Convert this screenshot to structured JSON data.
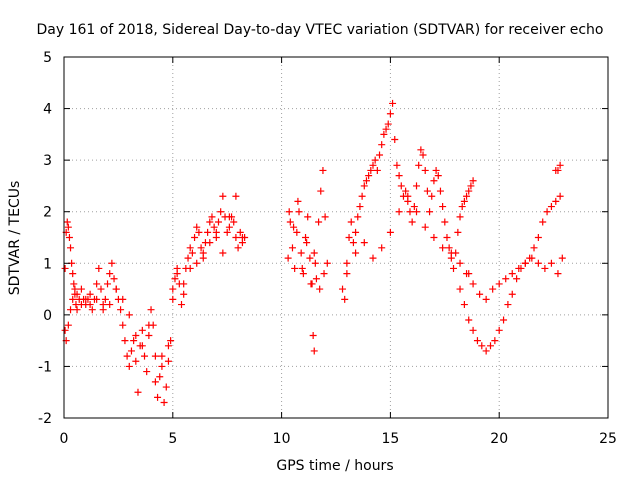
{
  "chart_data": {
    "type": "scatter",
    "title": "Day 161 of 2018, Sidereal Day-to-day VTEC variation (SDTVAR) for receiver echo",
    "xlabel": "GPS time / hours",
    "ylabel": "SDTVAR / TECUs",
    "xlim": [
      0,
      25
    ],
    "ylim": [
      -2,
      5
    ],
    "xticks": [
      "0",
      "5",
      "10",
      "15",
      "20",
      "25"
    ],
    "yticks": [
      "5",
      "4",
      "3",
      "2",
      "1",
      "0",
      "-1",
      "-2"
    ],
    "grid": true,
    "marker": "+",
    "colors": {
      "series": "#ff0000",
      "grid": "#a0a0a0",
      "axis": "#000000",
      "background": "#ffffff"
    },
    "series": [
      {
        "name": "SDTVAR",
        "x": [
          0.05,
          0.1,
          0.15,
          0.2,
          0.25,
          0.3,
          0.35,
          0.4,
          0.45,
          0.5,
          0.55,
          0.6,
          0.7,
          0.8,
          0.9,
          1.0,
          1.1,
          1.2,
          1.3,
          1.4,
          1.5,
          1.6,
          1.7,
          1.8,
          1.9,
          2.0,
          2.1,
          2.2,
          2.3,
          2.4,
          2.5,
          2.6,
          2.7,
          2.8,
          2.9,
          3.0,
          3.1,
          3.2,
          3.3,
          3.4,
          3.5,
          3.6,
          3.7,
          3.8,
          3.9,
          4.0,
          4.1,
          4.2,
          4.3,
          4.4,
          4.5,
          4.6,
          4.7,
          4.8,
          4.9,
          5.0,
          5.1,
          5.2,
          5.3,
          5.4,
          5.5,
          5.6,
          5.7,
          5.8,
          5.9,
          6.0,
          6.1,
          6.2,
          6.3,
          6.4,
          6.5,
          6.6,
          6.7,
          6.8,
          6.9,
          7.0,
          7.1,
          7.2,
          7.3,
          7.4,
          7.5,
          7.6,
          7.7,
          7.8,
          7.9,
          8.0,
          8.1,
          8.2,
          8.3,
          0.05,
          0.1,
          0.2,
          0.3,
          0.4,
          0.5,
          0.6,
          0.8,
          1.0,
          1.2,
          1.5,
          1.8,
          2.1,
          2.4,
          2.7,
          3.0,
          3.3,
          3.6,
          3.9,
          4.2,
          4.5,
          4.8,
          5.0,
          5.2,
          5.5,
          5.8,
          6.1,
          6.4,
          6.7,
          7.0,
          7.3,
          7.6,
          7.9,
          8.2,
          10.3,
          10.4,
          10.5,
          10.6,
          10.7,
          10.8,
          10.9,
          11.0,
          11.1,
          11.2,
          11.3,
          11.4,
          11.5,
          11.6,
          11.7,
          11.8,
          11.9,
          12.0,
          12.1,
          10.35,
          10.55,
          10.75,
          10.95,
          11.15,
          11.35,
          11.55,
          11.75,
          11.95,
          11.45,
          11.5,
          12.8,
          12.9,
          13.0,
          13.1,
          13.2,
          13.3,
          13.4,
          13.5,
          13.6,
          13.7,
          13.8,
          13.9,
          14.0,
          14.1,
          14.2,
          14.3,
          14.4,
          14.5,
          14.6,
          14.7,
          14.8,
          14.9,
          15.0,
          15.1,
          15.2,
          15.3,
          15.4,
          15.5,
          15.6,
          15.7,
          15.8,
          15.9,
          16.0,
          16.1,
          16.2,
          16.3,
          16.4,
          16.5,
          16.6,
          16.7,
          16.8,
          16.9,
          17.0,
          17.1,
          17.2,
          17.3,
          17.4,
          17.5,
          17.6,
          17.7,
          17.8,
          17.9,
          18.0,
          18.1,
          18.2,
          18.3,
          18.4,
          18.5,
          18.6,
          18.7,
          18.8,
          13.0,
          13.4,
          13.8,
          14.2,
          14.6,
          15.0,
          15.4,
          15.8,
          16.2,
          16.6,
          17.0,
          17.4,
          17.8,
          18.2,
          18.6,
          18.2,
          18.4,
          18.6,
          18.8,
          19.0,
          19.2,
          19.4,
          19.6,
          19.8,
          20.0,
          20.2,
          20.4,
          20.6,
          20.8,
          21.0,
          21.2,
          21.4,
          21.6,
          21.8,
          22.0,
          22.2,
          22.4,
          22.6,
          22.8,
          18.5,
          18.8,
          19.1,
          19.4,
          19.7,
          20.0,
          20.3,
          20.6,
          20.9,
          21.2,
          21.5,
          21.8,
          22.1,
          22.4,
          22.7,
          22.9,
          22.6,
          22.8,
          22.7
        ],
        "y": [
          0.9,
          1.6,
          1.8,
          1.7,
          1.5,
          1.3,
          1.0,
          0.8,
          0.6,
          0.4,
          0.2,
          0.1,
          0.3,
          0.5,
          0.3,
          0.2,
          0.3,
          0.2,
          0.1,
          0.3,
          0.6,
          0.9,
          0.5,
          0.2,
          0.3,
          0.6,
          0.8,
          1.0,
          0.7,
          0.5,
          0.3,
          0.1,
          -0.2,
          -0.5,
          -0.8,
          -1.0,
          -0.7,
          -0.5,
          -0.9,
          -1.5,
          -0.6,
          -0.3,
          -0.8,
          -1.1,
          -0.4,
          0.1,
          -0.2,
          -1.3,
          -1.6,
          -1.2,
          -0.8,
          -1.7,
          -1.4,
          -0.9,
          -0.5,
          0.3,
          0.7,
          0.9,
          0.6,
          0.2,
          0.6,
          0.9,
          1.1,
          1.3,
          1.2,
          1.5,
          1.7,
          1.6,
          1.3,
          1.1,
          1.4,
          1.6,
          1.8,
          1.9,
          1.7,
          1.5,
          1.8,
          2.0,
          2.3,
          1.9,
          1.6,
          1.7,
          1.9,
          1.8,
          1.5,
          1.3,
          1.6,
          1.4,
          1.5,
          -0.3,
          -0.5,
          -0.2,
          0.1,
          0.3,
          0.5,
          0.4,
          0.2,
          0.3,
          0.4,
          0.3,
          0.1,
          0.2,
          0.5,
          0.3,
          0.0,
          -0.4,
          -0.6,
          -0.2,
          -0.8,
          -1.0,
          -0.6,
          0.5,
          0.8,
          0.4,
          0.9,
          1.0,
          1.2,
          1.4,
          1.6,
          1.2,
          1.9,
          2.3,
          1.5,
          1.1,
          1.8,
          1.3,
          0.9,
          1.6,
          2.0,
          1.2,
          0.8,
          1.5,
          1.9,
          1.1,
          0.6,
          1.2,
          0.7,
          1.8,
          2.4,
          2.8,
          1.9,
          1.0,
          2.0,
          1.7,
          2.2,
          0.9,
          1.4,
          0.6,
          1.0,
          0.5,
          0.8,
          -0.4,
          -0.7,
          0.5,
          0.3,
          0.8,
          1.5,
          1.8,
          1.4,
          1.6,
          1.9,
          2.1,
          2.3,
          2.5,
          2.6,
          2.7,
          2.8,
          2.9,
          3.0,
          2.8,
          3.1,
          3.3,
          3.5,
          3.6,
          3.7,
          3.9,
          4.1,
          3.4,
          2.9,
          2.7,
          2.5,
          2.3,
          2.4,
          2.2,
          2.0,
          1.8,
          2.1,
          2.5,
          2.9,
          3.2,
          3.1,
          2.8,
          2.4,
          2.0,
          2.3,
          2.6,
          2.8,
          2.7,
          2.4,
          2.1,
          1.8,
          1.5,
          1.3,
          1.1,
          0.9,
          1.2,
          1.6,
          1.9,
          2.1,
          2.2,
          2.3,
          2.4,
          2.5,
          2.6,
          1.0,
          1.2,
          1.4,
          1.1,
          1.3,
          1.6,
          2.0,
          2.3,
          2.0,
          1.7,
          1.5,
          1.3,
          1.2,
          1.0,
          0.8,
          0.5,
          0.2,
          -0.1,
          -0.3,
          -0.5,
          -0.6,
          -0.7,
          -0.6,
          -0.5,
          -0.3,
          -0.1,
          0.2,
          0.4,
          0.7,
          0.9,
          1.0,
          1.1,
          1.3,
          1.5,
          1.8,
          2.0,
          2.1,
          2.2,
          2.3,
          0.8,
          0.6,
          0.4,
          0.3,
          0.5,
          0.6,
          0.7,
          0.8,
          0.9,
          1.0,
          1.1,
          1.0,
          0.9,
          1.0,
          0.8,
          1.1,
          2.8,
          2.9,
          2.8
        ]
      }
    ]
  }
}
